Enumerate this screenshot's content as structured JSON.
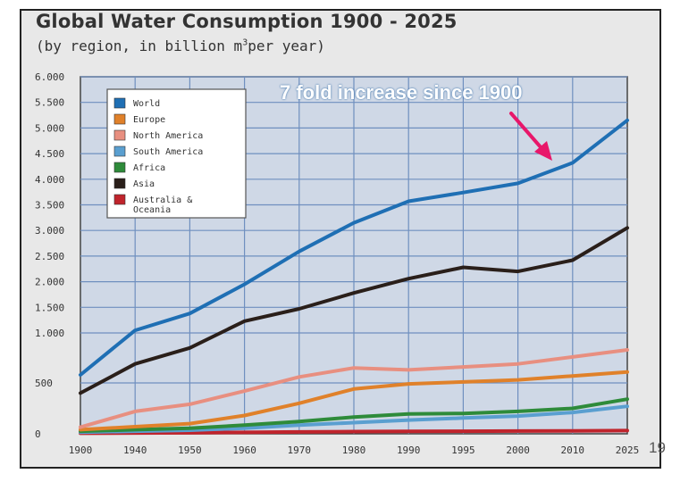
{
  "chart_data": {
    "type": "line",
    "title": "Global Water Consumption 1900 - 2025",
    "subtitle_before_sup": "(by region, in billion m",
    "subtitle_sup": "3",
    "subtitle_after_sup": "per year)",
    "x": [
      1900,
      1940,
      1950,
      1960,
      1970,
      1980,
      1990,
      1995,
      2000,
      2010,
      2025
    ],
    "xticks": [
      "1900",
      "1940",
      "1950",
      "1960",
      "1970",
      "1980",
      "1990",
      "1995",
      "2000",
      "2010",
      "2025"
    ],
    "yticks": [
      {
        "value": 0,
        "label": "0"
      },
      {
        "value": 500,
        "label": "500"
      },
      {
        "value": 1000,
        "label": "1.000"
      },
      {
        "value": 1500,
        "label": "1.500"
      },
      {
        "value": 2000,
        "label": "2.000"
      },
      {
        "value": 2500,
        "label": "2.500"
      },
      {
        "value": 3000,
        "label": "3.000"
      },
      {
        "value": 3500,
        "label": "3.500"
      },
      {
        "value": 4000,
        "label": "4.000"
      },
      {
        "value": 4500,
        "label": "4.500"
      },
      {
        "value": 5000,
        "label": "5.000"
      },
      {
        "value": 5500,
        "label": "5.500"
      },
      {
        "value": 6000,
        "label": "6.000"
      }
    ],
    "ylim": [
      0,
      6000
    ],
    "y_scale": "piecewise-linear (0-500 compressed)",
    "grid": true,
    "legend_position": "top-left",
    "series": [
      {
        "name": "World",
        "color": "#1f6fb4",
        "values": [
          580,
          1050,
          1380,
          1950,
          2590,
          3150,
          3570,
          3740,
          3920,
          4320,
          5150
        ]
      },
      {
        "name": "Europe",
        "color": "#e0812a",
        "values": [
          40,
          70,
          100,
          180,
          300,
          440,
          490,
          510,
          530,
          570,
          610
        ]
      },
      {
        "name": "North America",
        "color": "#e88f80",
        "values": [
          65,
          220,
          290,
          420,
          560,
          650,
          630,
          660,
          690,
          760,
          830
        ]
      },
      {
        "name": "South America",
        "color": "#5a9fd0",
        "values": [
          15,
          25,
          35,
          55,
          85,
          110,
          135,
          155,
          175,
          210,
          270
        ]
      },
      {
        "name": "Africa",
        "color": "#2e8b3a",
        "values": [
          25,
          40,
          55,
          85,
          120,
          165,
          195,
          200,
          220,
          250,
          340
        ]
      },
      {
        "name": "Asia",
        "color": "#2a1f1a",
        "values": [
          400,
          690,
          850,
          1230,
          1470,
          1780,
          2060,
          2280,
          2200,
          2420,
          3050
        ]
      },
      {
        "name": "Australia & Oceania",
        "color": "#c0242c",
        "values": [
          5,
          8,
          10,
          14,
          18,
          22,
          24,
          25,
          27,
          29,
          32
        ]
      }
    ],
    "annotation": "7 fold increase since 1900",
    "annotation_arrow_color": "#e8176a"
  },
  "slide_number": "19"
}
